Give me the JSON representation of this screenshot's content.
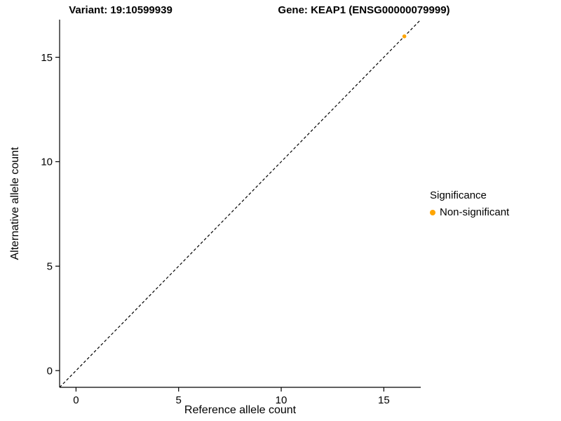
{
  "chart_data": {
    "type": "scatter",
    "title_left": "Variant: 19:10599939",
    "title_right": "Gene: KEAP1 (ENSG00000079999)",
    "xlabel": "Reference allele count",
    "ylabel": "Alternative allele count",
    "xlim": [
      -0.8,
      16.8
    ],
    "ylim": [
      -0.8,
      16.8
    ],
    "xticks": [
      0,
      5,
      10,
      15
    ],
    "yticks": [
      0,
      5,
      10,
      15
    ],
    "grid": false,
    "points": [
      {
        "x": 16,
        "y": 16,
        "series": "Non-significant"
      }
    ],
    "identity_line": {
      "style": "dashed",
      "color": "#000000",
      "from": [
        -0.8,
        -0.8
      ],
      "to": [
        16.8,
        16.8
      ]
    },
    "point_color": "#FFA500",
    "legend": {
      "title": "Significance",
      "position": "right",
      "entries": [
        {
          "label": "Non-significant",
          "color": "#FFA500"
        }
      ]
    }
  }
}
